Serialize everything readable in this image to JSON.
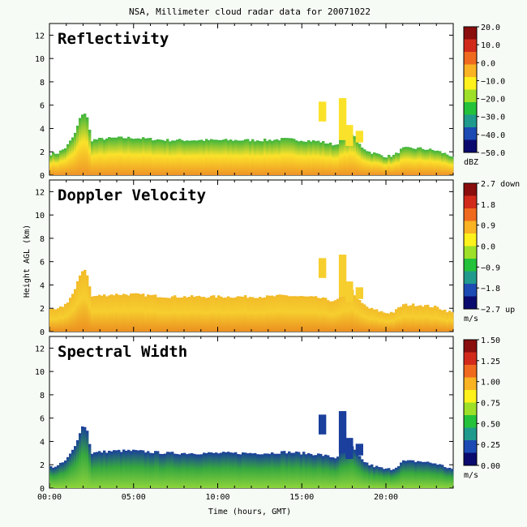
{
  "chart_data": {
    "type": "heatmap",
    "title": "NSA, Millimeter cloud radar data for 20071022",
    "xlabel": "Time (hours, GMT)",
    "ylabel": "Height AGL (km)",
    "xlim": [
      0,
      24
    ],
    "ylim": [
      0,
      13
    ],
    "xticks": [
      {
        "v": 0,
        "label": "00:00"
      },
      {
        "v": 5,
        "label": "05:00"
      },
      {
        "v": 10,
        "label": "10:00"
      },
      {
        "v": 15,
        "label": "15:00"
      },
      {
        "v": 20,
        "label": "20:00"
      }
    ],
    "yticks": [
      0,
      2,
      4,
      6,
      8,
      10,
      12
    ],
    "cloud_top_km": [
      [
        0.0,
        1.8
      ],
      [
        0.5,
        1.9
      ],
      [
        1.0,
        2.4
      ],
      [
        1.5,
        3.5
      ],
      [
        1.8,
        4.8
      ],
      [
        2.0,
        5.4
      ],
      [
        2.2,
        5.2
      ],
      [
        2.5,
        3.0
      ],
      [
        3.0,
        3.1
      ],
      [
        4.0,
        3.2
      ],
      [
        5.0,
        3.2
      ],
      [
        6.0,
        3.1
      ],
      [
        7.0,
        3.0
      ],
      [
        8.0,
        3.0
      ],
      [
        9.0,
        3.0
      ],
      [
        10.0,
        3.0
      ],
      [
        11.0,
        3.0
      ],
      [
        12.0,
        3.0
      ],
      [
        13.0,
        3.0
      ],
      [
        14.0,
        3.1
      ],
      [
        15.0,
        3.0
      ],
      [
        16.0,
        2.9
      ],
      [
        17.0,
        2.6
      ],
      [
        17.5,
        3.2
      ],
      [
        18.0,
        3.5
      ],
      [
        18.5,
        2.5
      ],
      [
        19.0,
        2.0
      ],
      [
        20.0,
        1.6
      ],
      [
        20.5,
        1.7
      ],
      [
        21.0,
        2.3
      ],
      [
        22.0,
        2.3
      ],
      [
        23.0,
        2.1
      ],
      [
        24.0,
        1.6
      ]
    ],
    "panels": [
      {
        "title": "Reflectivity",
        "unit": "dBZ",
        "colorbar_labels": [
          "20.0",
          "10.0",
          "0.0",
          "−10.0",
          "−20.0",
          "−30.0",
          "−40.0",
          "−50.0"
        ],
        "vmin": -50,
        "vmax": 20,
        "colors": {
          "low": "#3cb43c",
          "mid": "#fbe22a",
          "high": "#ef9426"
        }
      },
      {
        "title": "Doppler Velocity",
        "unit": "m/s",
        "colorbar_labels": [
          "2.7 down",
          "1.8",
          "0.9",
          "0.0",
          "−0.9",
          "−1.8",
          "−2.7 up"
        ],
        "vmin": -2.7,
        "vmax": 2.7,
        "colors": {
          "low": "#f2bb29",
          "mid": "#f6ce2e",
          "high": "#ec8f20"
        }
      },
      {
        "title": "Spectral Width",
        "unit": "m/s",
        "colorbar_labels": [
          "1.50",
          "1.25",
          "1.00",
          "0.75",
          "0.50",
          "0.25",
          "0.00"
        ],
        "vmin": 0,
        "vmax": 1.5,
        "colors": {
          "low": "#1a3f9c",
          "mid": "#36a83e",
          "high": "#8ed43c"
        }
      }
    ],
    "colormap": [
      "#0a0a6e",
      "#1c4bb4",
      "#1f9a8c",
      "#24c23a",
      "#9ee028",
      "#fff21c",
      "#f9b323",
      "#ef6a1e",
      "#d22a1a",
      "#8a0e0e"
    ]
  }
}
